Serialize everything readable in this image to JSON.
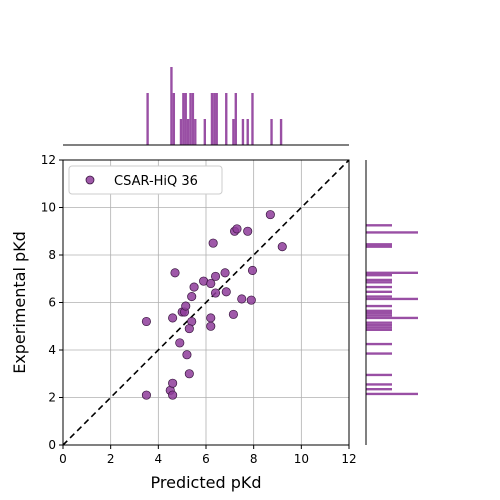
{
  "chart_data": {
    "type": "scatter",
    "xlabel": "Predicted pKd",
    "ylabel": "Experimental pKd",
    "xlim": [
      0,
      12
    ],
    "ylim": [
      0,
      12
    ],
    "xticks": [
      0,
      2,
      4,
      6,
      8,
      10,
      12
    ],
    "yticks": [
      0,
      2,
      4,
      6,
      8,
      10,
      12
    ],
    "grid": true,
    "legend": "top-left",
    "reference_line": "y = x (dashed)",
    "marginal_histograms": [
      "top: predicted",
      "right: experimental"
    ],
    "series": [
      {
        "name": "CSAR-HiQ 36",
        "color": "#8e3c9a",
        "points": [
          {
            "x": 3.5,
            "y": 2.1
          },
          {
            "x": 4.5,
            "y": 2.3
          },
          {
            "x": 4.6,
            "y": 2.1
          },
          {
            "x": 4.6,
            "y": 2.6
          },
          {
            "x": 5.3,
            "y": 3.0
          },
          {
            "x": 5.2,
            "y": 3.8
          },
          {
            "x": 4.9,
            "y": 4.3
          },
          {
            "x": 3.5,
            "y": 5.2
          },
          {
            "x": 4.6,
            "y": 5.35
          },
          {
            "x": 5.4,
            "y": 5.2
          },
          {
            "x": 5.3,
            "y": 4.9
          },
          {
            "x": 5.0,
            "y": 5.6
          },
          {
            "x": 5.1,
            "y": 5.6
          },
          {
            "x": 5.15,
            "y": 5.85
          },
          {
            "x": 5.4,
            "y": 6.25
          },
          {
            "x": 5.5,
            "y": 6.65
          },
          {
            "x": 5.9,
            "y": 6.9
          },
          {
            "x": 6.2,
            "y": 6.8
          },
          {
            "x": 6.4,
            "y": 6.4
          },
          {
            "x": 6.4,
            "y": 7.1
          },
          {
            "x": 6.8,
            "y": 7.25
          },
          {
            "x": 6.85,
            "y": 6.45
          },
          {
            "x": 6.2,
            "y": 5.35
          },
          {
            "x": 6.2,
            "y": 5.0
          },
          {
            "x": 7.15,
            "y": 5.5
          },
          {
            "x": 7.5,
            "y": 6.15
          },
          {
            "x": 7.9,
            "y": 6.1
          },
          {
            "x": 7.95,
            "y": 7.35
          },
          {
            "x": 6.3,
            "y": 8.5
          },
          {
            "x": 7.2,
            "y": 9.0
          },
          {
            "x": 7.3,
            "y": 9.1
          },
          {
            "x": 7.75,
            "y": 9.0
          },
          {
            "x": 8.7,
            "y": 9.7
          },
          {
            "x": 9.2,
            "y": 8.35
          },
          {
            "x": 4.7,
            "y": 7.25
          }
        ]
      }
    ],
    "top_histogram": {
      "bin_width": 0.1,
      "bins": [
        {
          "x": 3.5,
          "count": 2
        },
        {
          "x": 4.5,
          "count": 3
        },
        {
          "x": 4.6,
          "count": 2
        },
        {
          "x": 4.9,
          "count": 1
        },
        {
          "x": 5.0,
          "count": 2
        },
        {
          "x": 5.1,
          "count": 2
        },
        {
          "x": 5.2,
          "count": 1
        },
        {
          "x": 5.3,
          "count": 2
        },
        {
          "x": 5.4,
          "count": 2
        },
        {
          "x": 5.5,
          "count": 1
        },
        {
          "x": 5.9,
          "count": 1
        },
        {
          "x": 6.2,
          "count": 2
        },
        {
          "x": 6.3,
          "count": 2
        },
        {
          "x": 6.4,
          "count": 2
        },
        {
          "x": 6.8,
          "count": 2
        },
        {
          "x": 7.1,
          "count": 1
        },
        {
          "x": 7.2,
          "count": 2
        },
        {
          "x": 7.5,
          "count": 1
        },
        {
          "x": 7.7,
          "count": 1
        },
        {
          "x": 7.9,
          "count": 2
        },
        {
          "x": 8.7,
          "count": 1
        },
        {
          "x": 9.1,
          "count": 1
        }
      ]
    },
    "right_histogram": {
      "bin_width": 0.1,
      "bins": [
        {
          "y": 2.1,
          "count": 2
        },
        {
          "y": 2.3,
          "count": 1
        },
        {
          "y": 2.5,
          "count": 1
        },
        {
          "y": 2.9,
          "count": 1
        },
        {
          "y": 3.8,
          "count": 1
        },
        {
          "y": 4.2,
          "count": 1
        },
        {
          "y": 4.8,
          "count": 1
        },
        {
          "y": 4.9,
          "count": 1
        },
        {
          "y": 5.0,
          "count": 1
        },
        {
          "y": 5.1,
          "count": 1
        },
        {
          "y": 5.3,
          "count": 2
        },
        {
          "y": 5.4,
          "count": 1
        },
        {
          "y": 5.5,
          "count": 1
        },
        {
          "y": 5.6,
          "count": 1
        },
        {
          "y": 5.8,
          "count": 1
        },
        {
          "y": 6.1,
          "count": 2
        },
        {
          "y": 6.2,
          "count": 1
        },
        {
          "y": 6.4,
          "count": 1
        },
        {
          "y": 6.6,
          "count": 1
        },
        {
          "y": 6.8,
          "count": 1
        },
        {
          "y": 6.9,
          "count": 1
        },
        {
          "y": 7.1,
          "count": 1
        },
        {
          "y": 7.2,
          "count": 2
        },
        {
          "y": 8.3,
          "count": 1
        },
        {
          "y": 8.4,
          "count": 1
        },
        {
          "y": 8.9,
          "count": 2
        },
        {
          "y": 9.2,
          "count": 1
        }
      ]
    }
  }
}
